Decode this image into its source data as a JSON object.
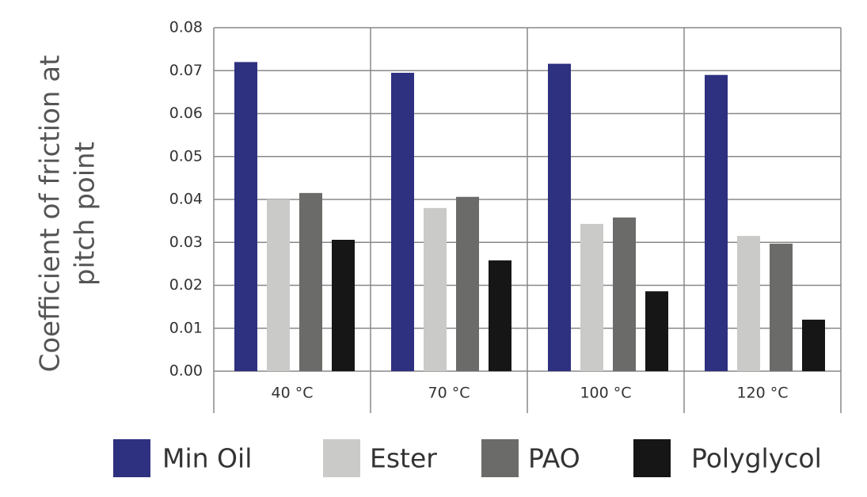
{
  "chart_data": {
    "type": "bar",
    "y_label": [
      "Coefficient of friction at",
      "pitch point"
    ],
    "categories": [
      "40 °C",
      "70 °C",
      "100 °C",
      "120 °C"
    ],
    "series": [
      {
        "name": "Min Oil",
        "color": "#2e3080",
        "values": [
          0.072,
          0.0695,
          0.0716,
          0.069
        ]
      },
      {
        "name": "Ester",
        "color": "#cacac8",
        "values": [
          0.04,
          0.038,
          0.0343,
          0.0315
        ]
      },
      {
        "name": "PAO",
        "color": "#6b6b69",
        "values": [
          0.0415,
          0.0406,
          0.0358,
          0.0297
        ]
      },
      {
        "name": "Polyglycol",
        "color": "#161616",
        "values": [
          0.0306,
          0.0258,
          0.0186,
          0.012
        ]
      }
    ],
    "ylim": [
      0,
      0.08
    ],
    "yticks": [
      {
        "value": 0,
        "label": "0.00"
      },
      0.01,
      0.02,
      0.03,
      0.04,
      0.05,
      0.06,
      0.07,
      0.08
    ],
    "grid": true,
    "legend": "bottom"
  }
}
